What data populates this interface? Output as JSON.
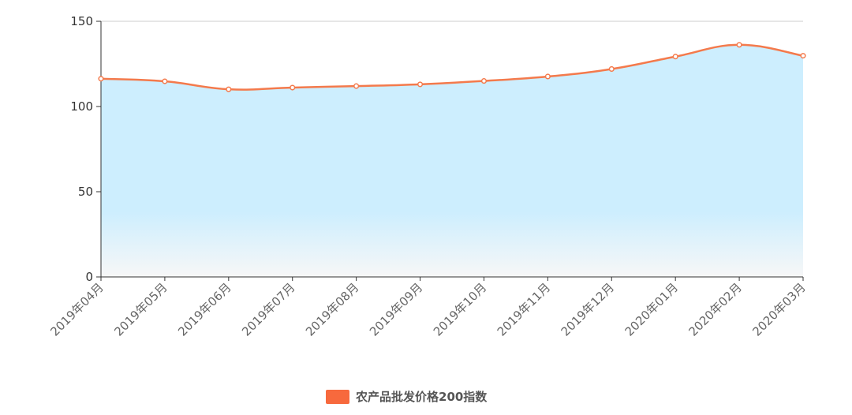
{
  "chart_data": {
    "type": "area",
    "categories": [
      "2019年04月",
      "2019年05月",
      "2019年06月",
      "2019年07月",
      "2019年08月",
      "2019年09月",
      "2019年10月",
      "2019年11月",
      "2019年12月",
      "2020年01月",
      "2020年02月",
      "2020年03月"
    ],
    "series": [
      {
        "name": "农产品批发价格200指数",
        "values": [
          116.3,
          114.8,
          110.1,
          111.1,
          112.0,
          113.0,
          115.0,
          117.6,
          122.0,
          129.3,
          136.2,
          129.8
        ]
      }
    ],
    "ylim": [
      0,
      150
    ],
    "yticks": [
      0,
      50,
      100,
      150
    ],
    "grid": true,
    "legend_position": "bottom",
    "colors": {
      "line": "#f47a4c",
      "legend_swatch": "#f7693d",
      "area_top": "#cdeefe",
      "area_bottom": "#f7f7f7",
      "grid": "#bcd6e0",
      "axis": "#333333"
    }
  }
}
